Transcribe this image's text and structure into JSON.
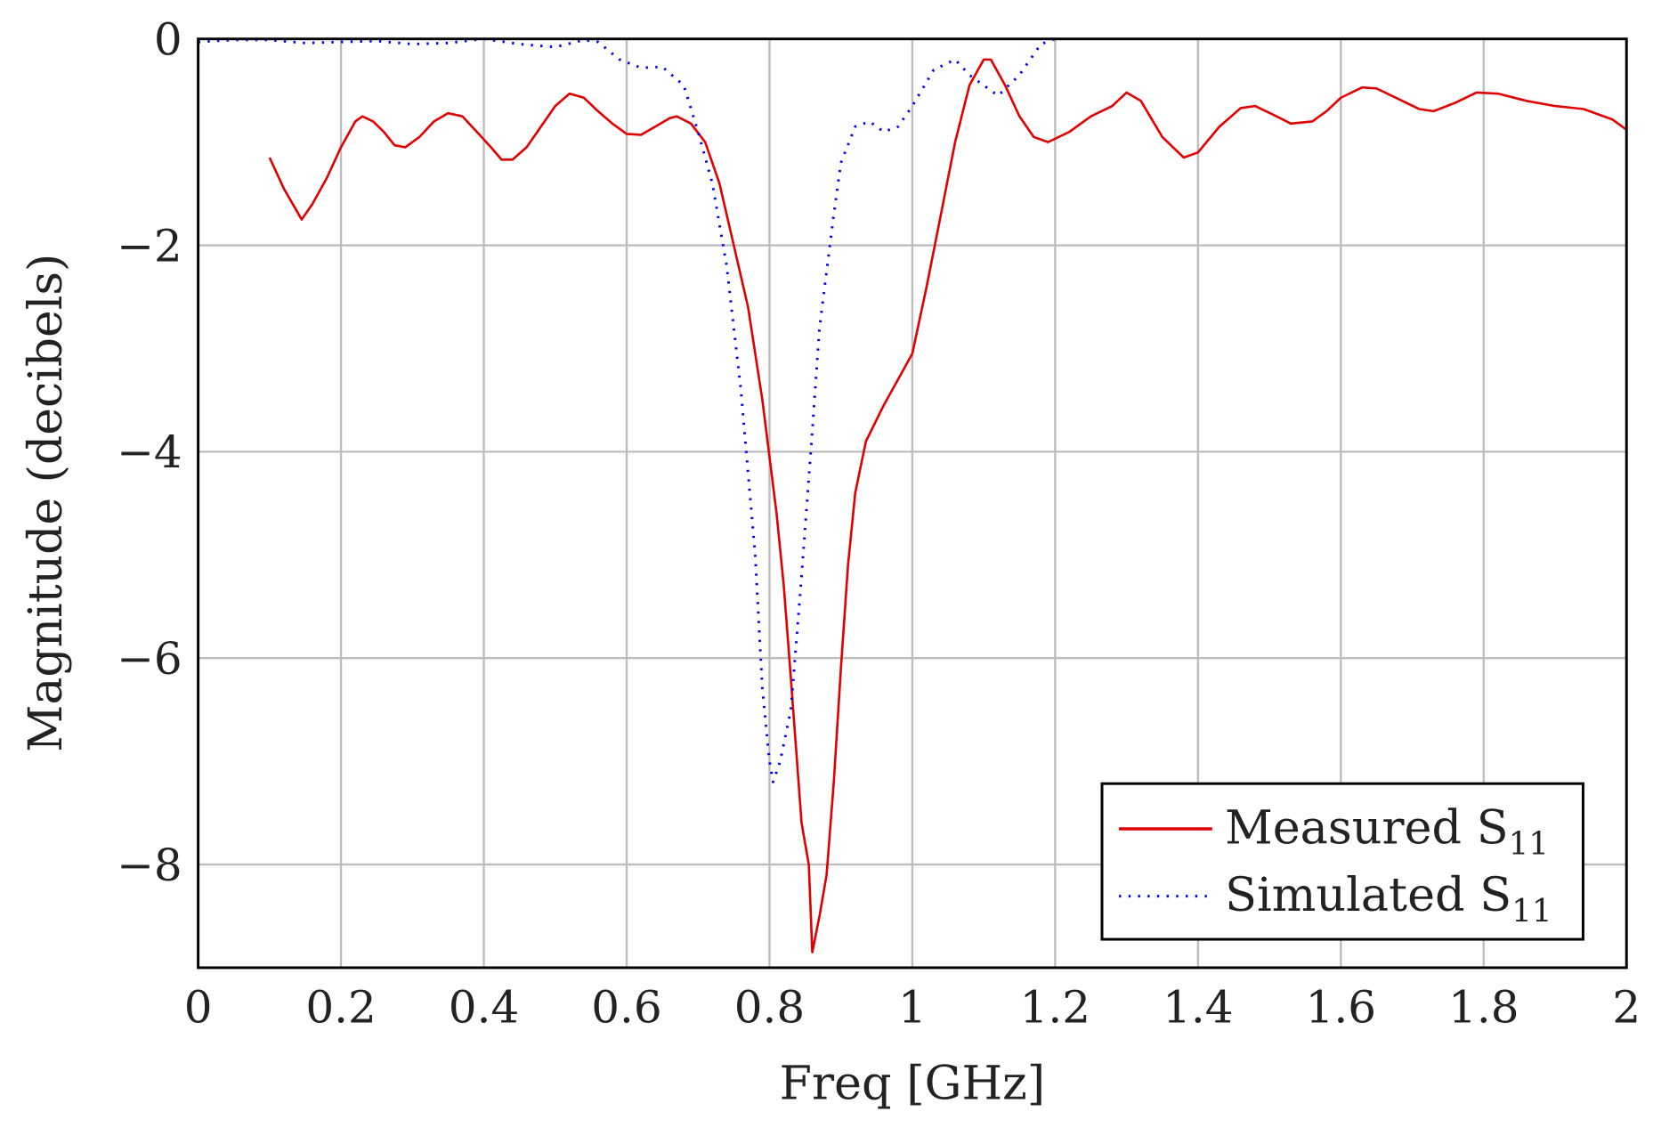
{
  "chart_data": {
    "type": "line",
    "title": "",
    "xlabel": "Freq [GHz]",
    "ylabel": "Magnitude (decibels)",
    "xlim": [
      0,
      2
    ],
    "ylim": [
      -9,
      0
    ],
    "xticks": [
      0,
      0.2,
      0.4,
      0.6,
      0.8,
      1,
      1.2,
      1.4,
      1.6,
      1.8,
      2
    ],
    "xtick_labels": [
      "0",
      "0.2",
      "0.4",
      "0.6",
      "0.8",
      "1",
      "1.2",
      "1.4",
      "1.6",
      "1.8",
      "2"
    ],
    "yticks": [
      0,
      -2,
      -4,
      -6,
      -8
    ],
    "ytick_labels": [
      "0",
      "−2",
      "−4",
      "−6",
      "−8"
    ],
    "grid": true,
    "legend_position": "bottom-right",
    "series": [
      {
        "name": "Measured S",
        "subscript": "11",
        "color": "#e00000",
        "style": "solid",
        "x": [
          0.1,
          0.12,
          0.145,
          0.16,
          0.18,
          0.2,
          0.22,
          0.23,
          0.245,
          0.26,
          0.275,
          0.29,
          0.31,
          0.33,
          0.35,
          0.37,
          0.39,
          0.41,
          0.425,
          0.44,
          0.46,
          0.48,
          0.5,
          0.52,
          0.54,
          0.56,
          0.58,
          0.6,
          0.62,
          0.64,
          0.66,
          0.67,
          0.69,
          0.71,
          0.73,
          0.75,
          0.77,
          0.79,
          0.81,
          0.82,
          0.83,
          0.845,
          0.855,
          0.86,
          0.87,
          0.88,
          0.89,
          0.9,
          0.91,
          0.92,
          0.935,
          0.96,
          0.98,
          1.0,
          1.02,
          1.04,
          1.06,
          1.08,
          1.1,
          1.11,
          1.13,
          1.15,
          1.17,
          1.19,
          1.22,
          1.25,
          1.28,
          1.3,
          1.32,
          1.35,
          1.38,
          1.4,
          1.43,
          1.46,
          1.48,
          1.51,
          1.53,
          1.56,
          1.58,
          1.6,
          1.63,
          1.65,
          1.68,
          1.71,
          1.73,
          1.76,
          1.79,
          1.82,
          1.86,
          1.9,
          1.94,
          1.98,
          2.0
        ],
        "y": [
          -1.15,
          -1.45,
          -1.75,
          -1.6,
          -1.35,
          -1.05,
          -0.8,
          -0.75,
          -0.8,
          -0.9,
          -1.03,
          -1.05,
          -0.95,
          -0.8,
          -0.72,
          -0.75,
          -0.9,
          -1.05,
          -1.17,
          -1.17,
          -1.05,
          -0.85,
          -0.65,
          -0.53,
          -0.57,
          -0.7,
          -0.82,
          -0.92,
          -0.93,
          -0.85,
          -0.77,
          -0.75,
          -0.82,
          -1.0,
          -1.4,
          -2.0,
          -2.6,
          -3.5,
          -4.6,
          -5.3,
          -6.2,
          -7.6,
          -8.0,
          -8.85,
          -8.5,
          -8.1,
          -7.2,
          -6.1,
          -5.1,
          -4.4,
          -3.9,
          -3.55,
          -3.3,
          -3.05,
          -2.4,
          -1.7,
          -1.0,
          -0.45,
          -0.2,
          -0.2,
          -0.45,
          -0.75,
          -0.95,
          -1.0,
          -0.9,
          -0.75,
          -0.65,
          -0.52,
          -0.6,
          -0.95,
          -1.15,
          -1.1,
          -0.85,
          -0.67,
          -0.65,
          -0.75,
          -0.82,
          -0.8,
          -0.7,
          -0.57,
          -0.47,
          -0.48,
          -0.58,
          -0.68,
          -0.7,
          -0.62,
          -0.52,
          -0.53,
          -0.6,
          -0.65,
          -0.68,
          -0.78,
          -0.88
        ]
      },
      {
        "name": "Simulated S",
        "subscript": "11",
        "color": "#0000ee",
        "style": "dotted",
        "x": [
          0,
          0.05,
          0.1,
          0.15,
          0.2,
          0.25,
          0.3,
          0.35,
          0.4,
          0.45,
          0.5,
          0.54,
          0.56,
          0.59,
          0.62,
          0.65,
          0.68,
          0.7,
          0.72,
          0.74,
          0.76,
          0.78,
          0.79,
          0.8,
          0.805,
          0.815,
          0.83,
          0.845,
          0.86,
          0.87,
          0.89,
          0.9,
          0.92,
          0.94,
          0.96,
          0.98,
          1.0,
          1.03,
          1.06,
          1.08,
          1.1,
          1.12,
          1.15,
          1.18,
          1.2
        ],
        "y": [
          -0.03,
          -0.01,
          -0.01,
          -0.04,
          -0.03,
          -0.02,
          -0.05,
          -0.04,
          0,
          -0.05,
          -0.08,
          -0.01,
          -0.03,
          -0.2,
          -0.28,
          -0.27,
          -0.45,
          -0.9,
          -1.4,
          -2.2,
          -3.4,
          -5.0,
          -6.3,
          -7.0,
          -7.2,
          -7.0,
          -6.5,
          -5.2,
          -3.8,
          -2.8,
          -1.7,
          -1.2,
          -0.85,
          -0.8,
          -0.9,
          -0.85,
          -0.65,
          -0.3,
          -0.2,
          -0.35,
          -0.45,
          -0.55,
          -0.35,
          -0.05,
          0
        ]
      }
    ]
  }
}
